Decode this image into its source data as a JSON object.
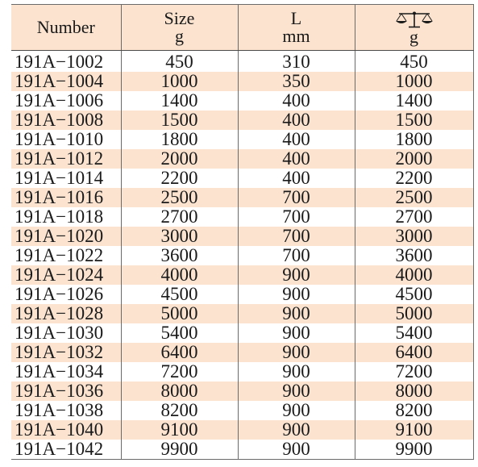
{
  "table": {
    "header": {
      "number": "Number",
      "size_label": "Size",
      "size_unit": "g",
      "length_label": "L",
      "length_unit": "mm",
      "weight_icon": "scale-icon",
      "weight_unit": "g"
    },
    "rows": [
      {
        "number": "191A−1002",
        "size": "450",
        "length": "310",
        "weight": "450"
      },
      {
        "number": "191A−1004",
        "size": "1000",
        "length": "350",
        "weight": "1000"
      },
      {
        "number": "191A−1006",
        "size": "1400",
        "length": "400",
        "weight": "1400"
      },
      {
        "number": "191A−1008",
        "size": "1500",
        "length": "400",
        "weight": "1500"
      },
      {
        "number": "191A−1010",
        "size": "1800",
        "length": "400",
        "weight": "1800"
      },
      {
        "number": "191A−1012",
        "size": "2000",
        "length": "400",
        "weight": "2000"
      },
      {
        "number": "191A−1014",
        "size": "2200",
        "length": "400",
        "weight": "2200"
      },
      {
        "number": "191A−1016",
        "size": "2500",
        "length": "700",
        "weight": "2500"
      },
      {
        "number": "191A−1018",
        "size": "2700",
        "length": "700",
        "weight": "2700"
      },
      {
        "number": "191A−1020",
        "size": "3000",
        "length": "700",
        "weight": "3000"
      },
      {
        "number": "191A−1022",
        "size": "3600",
        "length": "700",
        "weight": "3600"
      },
      {
        "number": "191A−1024",
        "size": "4000",
        "length": "900",
        "weight": "4000"
      },
      {
        "number": "191A−1026",
        "size": "4500",
        "length": "900",
        "weight": "4500"
      },
      {
        "number": "191A−1028",
        "size": "5000",
        "length": "900",
        "weight": "5000"
      },
      {
        "number": "191A−1030",
        "size": "5400",
        "length": "900",
        "weight": "5400"
      },
      {
        "number": "191A−1032",
        "size": "6400",
        "length": "900",
        "weight": "6400"
      },
      {
        "number": "191A−1034",
        "size": "7200",
        "length": "900",
        "weight": "7200"
      },
      {
        "number": "191A−1036",
        "size": "8000",
        "length": "900",
        "weight": "8000"
      },
      {
        "number": "191A−1038",
        "size": "8200",
        "length": "900",
        "weight": "8200"
      },
      {
        "number": "191A−1040",
        "size": "9100",
        "length": "900",
        "weight": "9100"
      },
      {
        "number": "191A−1042",
        "size": "9900",
        "length": "900",
        "weight": "9900"
      }
    ]
  },
  "colors": {
    "header_bg": "#fbe3cf",
    "stripe_bg": "#fbe3cf",
    "grid_line": "#6a6a6a",
    "text": "#1a1a1a"
  }
}
